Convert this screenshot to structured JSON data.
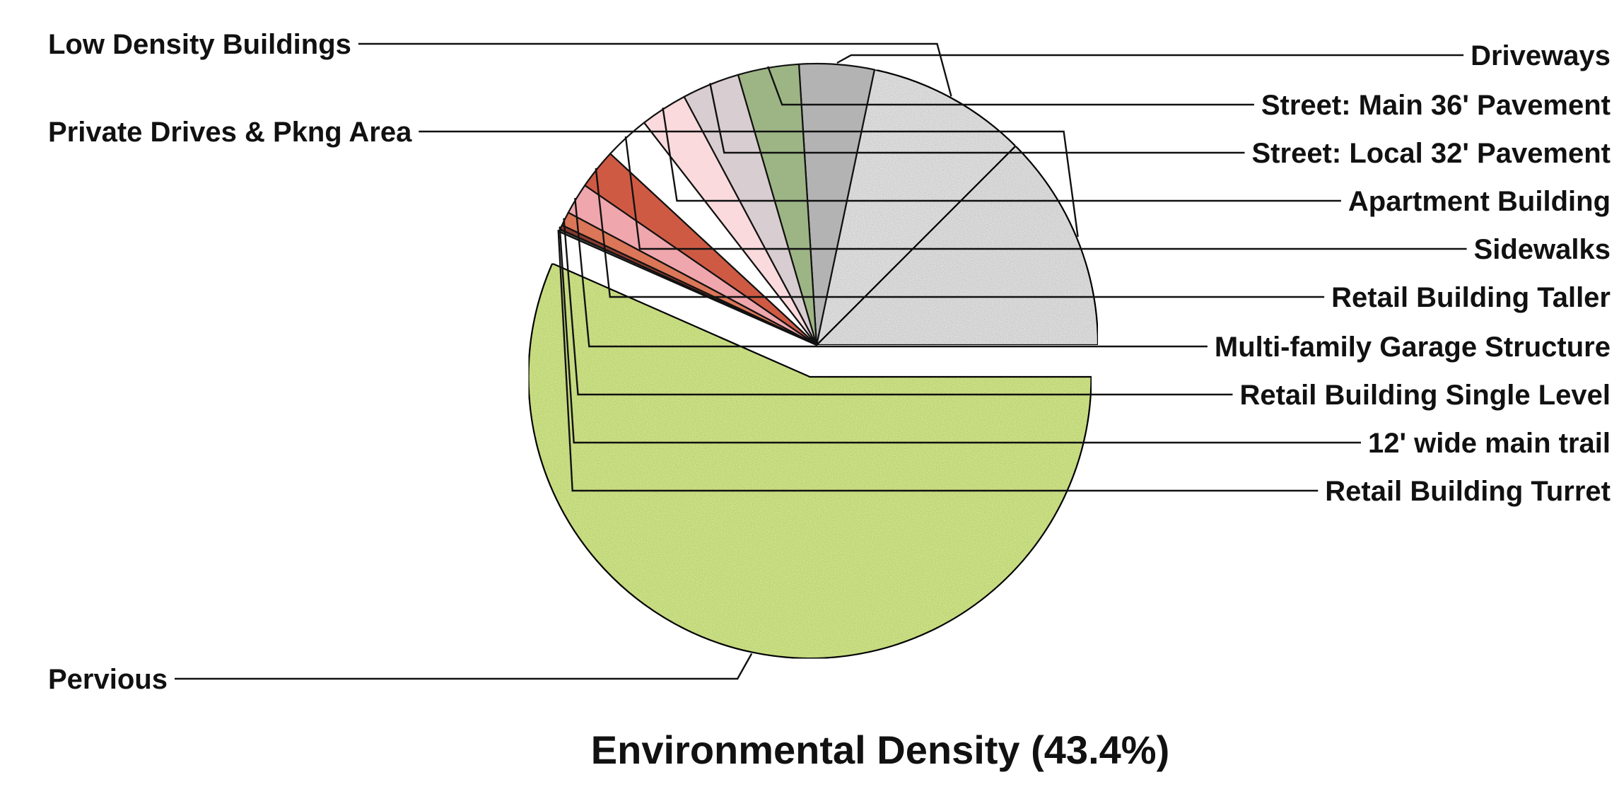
{
  "chart_data": {
    "type": "pie",
    "title": "Environmental Density (43.4%)",
    "slices": [
      {
        "label": "Pervious",
        "value": 56.6,
        "color": "#d6ec8a",
        "exploded": true
      },
      {
        "label": "Private Drives & Pkng Area",
        "value": 12.5,
        "color": "#e6e6e6"
      },
      {
        "label": "Low Density Buildings",
        "value": 9.2,
        "color": "#e8e8e8"
      },
      {
        "label": "Driveways",
        "value": 4.3,
        "color": "#b3b3b3"
      },
      {
        "label": "Street:  Main 36' Pavement",
        "value": 3.5,
        "color": "#9db585"
      },
      {
        "label": "Street:  Local 32' Pavement",
        "value": 3.3,
        "color": "#d8cdd0"
      },
      {
        "label": "Apartment Building",
        "value": 2.7,
        "color": "#fadadd"
      },
      {
        "label": "Sidewalks",
        "value": 2.6,
        "color": "#ffffff"
      },
      {
        "label": "Retail Building Taller",
        "value": 2.3,
        "color": "#cf5a44"
      },
      {
        "label": "Multi-family Garage Structure",
        "value": 1.8,
        "color": "#efa6ac"
      },
      {
        "label": "Retail Building Single Level",
        "value": 0.8,
        "color": "#db7658"
      },
      {
        "label": "12' wide main trail",
        "value": 0.25,
        "color": "#8a3a2e"
      },
      {
        "label": "Retail Building Turret",
        "value": 0.15,
        "color": "#4a4a4a"
      }
    ],
    "start_angle": "east",
    "direction": "counter-clockwise-for-small-slices",
    "legend": "none (leader-line labels)"
  }
}
